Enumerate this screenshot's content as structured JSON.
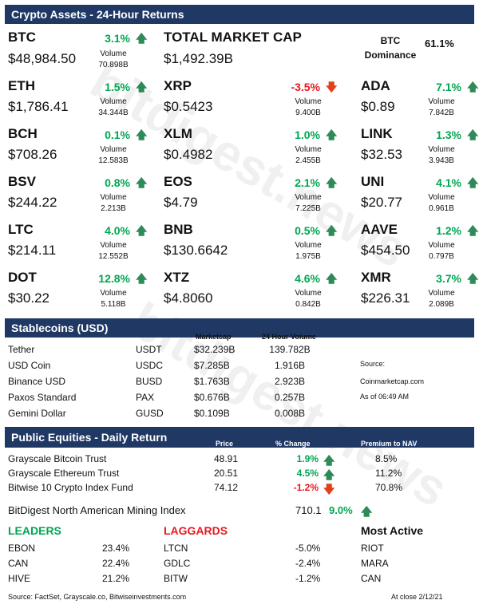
{
  "header": {
    "title": "Crypto Assets - 24-Hour Returns"
  },
  "btc": {
    "symbol": "BTC",
    "change": "3.1%",
    "price": "$48,984.50",
    "volume_label": "Volume",
    "volume": "70.898B"
  },
  "total_market": {
    "label": "TOTAL MARKET CAP",
    "value": "$1,492.39B",
    "dominance_label": "BTC Dominance",
    "dominance_label_1": "BTC",
    "dominance_label_2": "Dominance",
    "dominance_value": "61.1%"
  },
  "assets": [
    {
      "symbol": "ETH",
      "change": "1.5%",
      "dir": "up",
      "price": "$1,786.41",
      "volume": "34.344B"
    },
    {
      "symbol": "XRP",
      "change": "-3.5%",
      "dir": "down",
      "price": "$0.5423",
      "volume": "9.400B"
    },
    {
      "symbol": "ADA",
      "change": "7.1%",
      "dir": "up",
      "price": "$0.89",
      "volume": "7.842B"
    },
    {
      "symbol": "BCH",
      "change": "0.1%",
      "dir": "up",
      "price": "$708.26",
      "volume": "12.583B"
    },
    {
      "symbol": "XLM",
      "change": "1.0%",
      "dir": "up",
      "price": "$0.4982",
      "volume": "2.455B"
    },
    {
      "symbol": "LINK",
      "change": "1.3%",
      "dir": "up",
      "price": "$32.53",
      "volume": "3.943B"
    },
    {
      "symbol": "BSV",
      "change": "0.8%",
      "dir": "up",
      "price": "$244.22",
      "volume": "2.213B"
    },
    {
      "symbol": "EOS",
      "change": "2.1%",
      "dir": "up",
      "price": "$4.79",
      "volume": "7.225B"
    },
    {
      "symbol": "UNI",
      "change": "4.1%",
      "dir": "up",
      "price": "$20.77",
      "volume": "0.961B"
    },
    {
      "symbol": "LTC",
      "change": "4.0%",
      "dir": "up",
      "price": "$214.11",
      "volume": "12.552B"
    },
    {
      "symbol": "BNB",
      "change": "0.5%",
      "dir": "up",
      "price": "$130.6642",
      "volume": "1.975B"
    },
    {
      "symbol": "AAVE",
      "change": "1.2%",
      "dir": "up",
      "price": "$454.50",
      "volume": "0.797B"
    },
    {
      "symbol": "DOT",
      "change": "12.8%",
      "dir": "up",
      "price": "$30.22",
      "volume": "5.118B"
    },
    {
      "symbol": "XTZ",
      "change": "4.6%",
      "dir": "up",
      "price": "$4.8060",
      "volume": "0.842B"
    },
    {
      "symbol": "XMR",
      "change": "3.7%",
      "dir": "up",
      "price": "$226.31",
      "volume": "2.089B"
    }
  ],
  "volume_label": "Volume",
  "stablecoins": {
    "title": "Stablecoins (USD)",
    "col_marketcap": "Marketcap",
    "col_volume": "24 Hour Volume",
    "rows": [
      {
        "name": "Tether",
        "ticker": "USDT",
        "mcap": "$32.239B",
        "vol": "139.782B"
      },
      {
        "name": "USD Coin",
        "ticker": "USDC",
        "mcap": "$7.285B",
        "vol": "1.916B"
      },
      {
        "name": "Binance USD",
        "ticker": "BUSD",
        "mcap": "$1.763B",
        "vol": "2.923B"
      },
      {
        "name": "Paxos Standard",
        "ticker": "PAX",
        "mcap": "$0.676B",
        "vol": "0.257B"
      },
      {
        "name": "Gemini Dollar",
        "ticker": "GUSD",
        "mcap": "$0.109B",
        "vol": "0.008B"
      }
    ],
    "source_label": "Source:",
    "source": "Coinmarketcap.com",
    "time": "As of 06:49 AM"
  },
  "equities": {
    "title": "Public Equities - Daily Return",
    "col_price": "Price",
    "col_change": "% Change",
    "col_premium": "Premium to NAV",
    "rows": [
      {
        "name": "Grayscale Bitcoin Trust",
        "price": "48.91",
        "change": "1.9%",
        "dir": "up",
        "premium": "8.5%"
      },
      {
        "name": "Grayscale Ethereum Trust",
        "price": "20.51",
        "change": "4.5%",
        "dir": "up",
        "premium": "11.2%"
      },
      {
        "name": "Bitwise 10 Crypto Index Fund",
        "price": "74.12",
        "change": "-1.2%",
        "dir": "down",
        "premium": "70.8%"
      }
    ],
    "mining": {
      "name": "BitDigest North American Mining Index",
      "value": "710.1",
      "change": "9.0%"
    }
  },
  "leaders": {
    "title": "LEADERS",
    "rows": [
      {
        "t": "EBON",
        "v": "23.4%"
      },
      {
        "t": "CAN",
        "v": "22.4%"
      },
      {
        "t": "HIVE",
        "v": "21.2%"
      }
    ]
  },
  "laggards": {
    "title": "LAGGARDS",
    "rows": [
      {
        "t": "LTCN",
        "v": "-5.0%"
      },
      {
        "t": "GDLC",
        "v": "-2.4%"
      },
      {
        "t": "BITW",
        "v": "-1.2%"
      }
    ]
  },
  "most_active": {
    "title": "Most Active",
    "rows": [
      "RIOT",
      "MARA",
      "CAN"
    ]
  },
  "footer": {
    "source": "Source: FactSet, Grayscale.co, Bitwiseinvestments.com",
    "close": "At close  2/12/21"
  },
  "watermark": "bitdigest.news",
  "colors": {
    "header_bg": "#1f3864",
    "up": "#00a651",
    "down": "#e8171e"
  }
}
